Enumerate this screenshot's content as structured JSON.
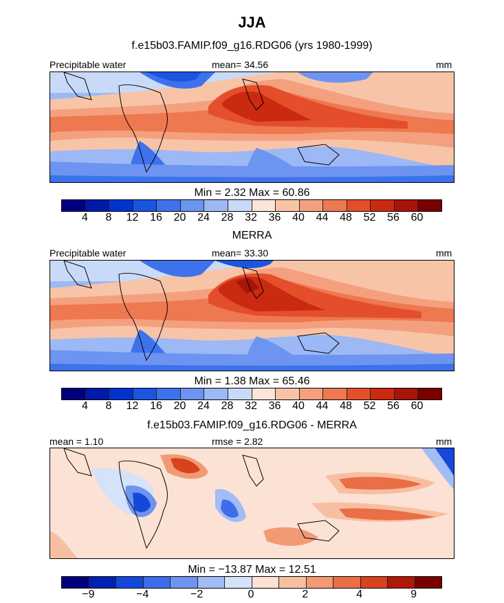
{
  "title": "JJA",
  "panels": [
    {
      "subtitle": "f.e15b03.FAMIP.f09_g16.RDG06 (yrs 1980-1999)",
      "left_label": "Precipitable water",
      "center_label": "mean=   34.56",
      "right_label": "mm",
      "minmax": "Min =     2.32  Max =    60.86",
      "tick_labels": [
        "4",
        "8",
        "12",
        "16",
        "20",
        "24",
        "28",
        "32",
        "36",
        "40",
        "44",
        "48",
        "52",
        "56",
        "60"
      ]
    },
    {
      "subtitle": "MERRA",
      "left_label": "Precipitable water",
      "center_label": "mean=   33.30",
      "right_label": "mm",
      "minmax": "Min =     1.38  Max =    65.46",
      "tick_labels": [
        "4",
        "8",
        "12",
        "16",
        "20",
        "24",
        "28",
        "32",
        "36",
        "40",
        "44",
        "48",
        "52",
        "56",
        "60"
      ]
    },
    {
      "subtitle": "f.e15b03.FAMIP.f09_g16.RDG06 - MERRA",
      "left_label": "mean =     1.10",
      "center_label": "rmse =     2.82",
      "right_label": "mm",
      "minmax": "Min =  −13.87  Max =    12.51",
      "tick_labels": [
        "−9",
        "−4",
        "−2",
        "0",
        "2",
        "4",
        "9"
      ]
    }
  ],
  "colors": {
    "colorbar_full": [
      "#00007f",
      "#0019a8",
      "#0033cc",
      "#1a55e0",
      "#3d72ec",
      "#6c94f0",
      "#9cb8f5",
      "#c9daf8",
      "#fbe4d8",
      "#f8c4a8",
      "#f4a07e",
      "#ee7850",
      "#e44e2a",
      "#c92a10",
      "#a8140a",
      "#7a0000"
    ],
    "colorbar_diff": [
      "#00007f",
      "#0022b0",
      "#1448d8",
      "#3d6de8",
      "#6e93f0",
      "#a2bcf5",
      "#d4e2fa",
      "#fbe2d4",
      "#f7bfa2",
      "#f29a74",
      "#ea6e46",
      "#d8421e",
      "#b0180a",
      "#7a0000"
    ]
  },
  "chart_data": [
    {
      "type": "heatmap",
      "title": "Precipitable water",
      "subtitle": "f.e15b03.FAMIP.f09_g16.RDG06 (yrs 1980-1999)",
      "season": "JJA",
      "units": "mm",
      "mean": 34.56,
      "min": 2.32,
      "max": 60.86,
      "contour_levels": [
        4,
        8,
        12,
        16,
        20,
        24,
        28,
        32,
        36,
        40,
        44,
        48,
        52,
        56,
        60
      ]
    },
    {
      "type": "heatmap",
      "title": "Precipitable water",
      "subtitle": "MERRA",
      "season": "JJA",
      "units": "mm",
      "mean": 33.3,
      "min": 1.38,
      "max": 65.46,
      "contour_levels": [
        4,
        8,
        12,
        16,
        20,
        24,
        28,
        32,
        36,
        40,
        44,
        48,
        52,
        56,
        60
      ]
    },
    {
      "type": "heatmap",
      "title": "f.e15b03.FAMIP.f09_g16.RDG06 - MERRA",
      "season": "JJA",
      "units": "mm",
      "mean": 1.1,
      "rmse": 2.82,
      "min": -13.87,
      "max": 12.51,
      "contour_levels": [
        -9,
        -4,
        -2,
        0,
        2,
        4,
        9
      ]
    }
  ]
}
